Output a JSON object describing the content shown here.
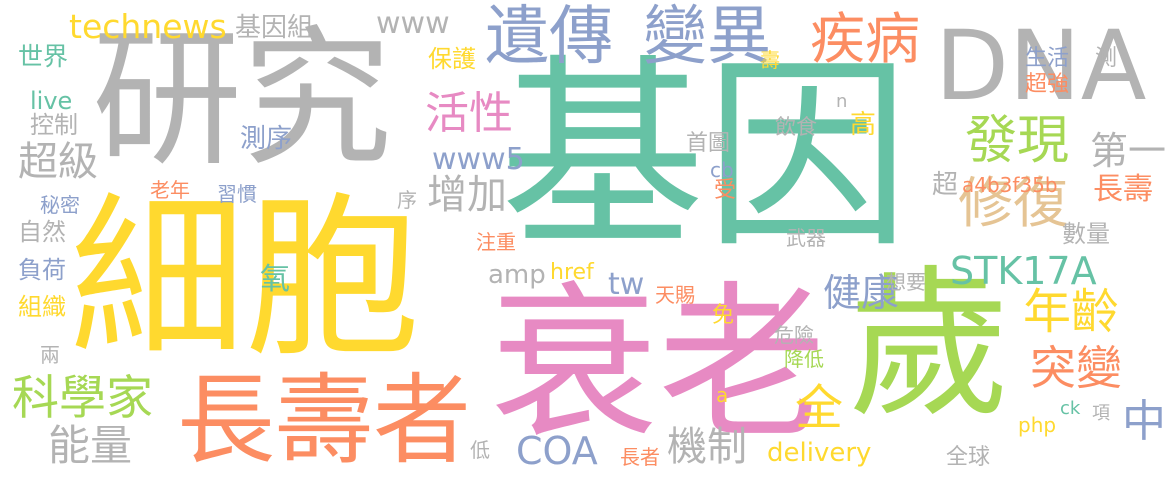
{
  "colors": {
    "teal": "#66c2a5",
    "orange": "#fc8d62",
    "blue": "#8da0cb",
    "pink": "#e78ac3",
    "green": "#a6d854",
    "yellow": "#ffd92f",
    "tan": "#e5c494",
    "gray": "#b3b3b3"
  },
  "words": [
    "基因",
    "細胞",
    "衰老",
    "歲",
    "研究",
    "DNA",
    "長壽者",
    "遺傳",
    "變異",
    "疾病",
    "technews",
    "科學家",
    "能量",
    "COA",
    "機制",
    "年齡",
    "突變",
    "中",
    "全",
    "修復",
    "發現",
    "STK17A",
    "健康",
    "活性",
    "增加",
    "世界",
    "www5",
    "超級",
    "第一",
    "長壽",
    "delivery",
    "www",
    "基因組",
    "live",
    "控制",
    "保護",
    "測序",
    "首圖",
    "飲食",
    "高",
    "自然",
    "負荷",
    "組織",
    "氧",
    "天賜",
    "tw",
    "amp",
    "href",
    "注重",
    "數量",
    "a4b3f35b",
    "超",
    "危險",
    "降低",
    "長者",
    "php",
    "項",
    "低",
    "兩",
    "老年",
    "習慣",
    "秘密",
    "想要",
    "武器",
    "cb",
    "受",
    "免",
    "序",
    "生活",
    "超強",
    "測",
    "壽",
    "全球",
    "ck",
    "a",
    "n"
  ]
}
